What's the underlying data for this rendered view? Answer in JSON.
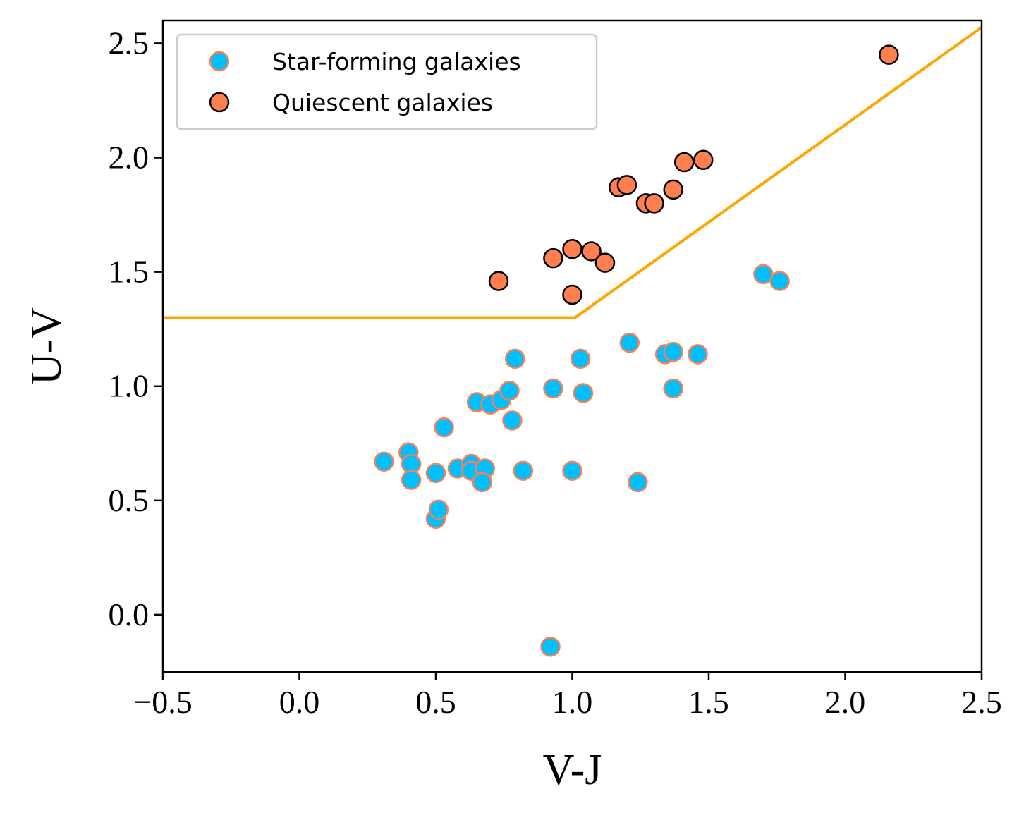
{
  "chart_data": {
    "type": "scatter",
    "title": "",
    "xlabel": "V-J",
    "ylabel": "U-V",
    "xlim": [
      -0.5,
      2.5
    ],
    "ylim": [
      -0.25,
      2.6
    ],
    "xticks": [
      -0.5,
      0.0,
      0.5,
      1.0,
      1.5,
      2.0,
      2.5
    ],
    "xtick_labels": [
      "−0.5",
      "0.0",
      "0.5",
      "1.0",
      "1.5",
      "2.0",
      "2.5"
    ],
    "yticks": [
      0.0,
      0.5,
      1.0,
      1.5,
      2.0,
      2.5
    ],
    "ytick_labels": [
      "0.0",
      "0.5",
      "1.0",
      "1.5",
      "2.0",
      "2.5"
    ],
    "grid": false,
    "legend_position": "top-left",
    "colors": {
      "star_fill": "#00bfff",
      "star_edge": "#ff7f50",
      "quiescent_fill": "#ff7f50",
      "quiescent_edge": "#000000",
      "boundary": "#ffa500"
    },
    "boundary_line": {
      "name": "UVJ selection boundary",
      "points": [
        [
          -0.5,
          1.3
        ],
        [
          1.01,
          1.3
        ],
        [
          2.5,
          2.57
        ]
      ]
    },
    "series": [
      {
        "name": "Star-forming galaxies",
        "points": [
          [
            0.31,
            0.67
          ],
          [
            0.4,
            0.71
          ],
          [
            0.41,
            0.66
          ],
          [
            0.41,
            0.59
          ],
          [
            0.5,
            0.42
          ],
          [
            0.51,
            0.46
          ],
          [
            0.5,
            0.62
          ],
          [
            0.53,
            0.82
          ],
          [
            0.58,
            0.64
          ],
          [
            0.63,
            0.66
          ],
          [
            0.63,
            0.63
          ],
          [
            0.65,
            0.93
          ],
          [
            0.7,
            0.92
          ],
          [
            0.68,
            0.64
          ],
          [
            0.67,
            0.58
          ],
          [
            0.74,
            0.94
          ],
          [
            0.77,
            0.98
          ],
          [
            0.78,
            0.85
          ],
          [
            0.79,
            1.12
          ],
          [
            0.82,
            0.63
          ],
          [
            0.92,
            -0.14
          ],
          [
            0.93,
            0.99
          ],
          [
            1.0,
            0.63
          ],
          [
            1.03,
            1.12
          ],
          [
            1.04,
            0.97
          ],
          [
            1.21,
            1.19
          ],
          [
            1.24,
            0.58
          ],
          [
            1.34,
            1.14
          ],
          [
            1.37,
            1.15
          ],
          [
            1.37,
            0.99
          ],
          [
            1.46,
            1.14
          ],
          [
            1.7,
            1.49
          ],
          [
            1.76,
            1.46
          ]
        ]
      },
      {
        "name": "Quiescent galaxies",
        "points": [
          [
            0.73,
            1.46
          ],
          [
            0.93,
            1.56
          ],
          [
            1.0,
            1.6
          ],
          [
            1.0,
            1.4
          ],
          [
            1.07,
            1.59
          ],
          [
            1.12,
            1.54
          ],
          [
            1.17,
            1.87
          ],
          [
            1.2,
            1.88
          ],
          [
            1.27,
            1.8
          ],
          [
            1.3,
            1.8
          ],
          [
            1.37,
            1.86
          ],
          [
            1.41,
            1.98
          ],
          [
            1.48,
            1.99
          ],
          [
            2.16,
            2.45
          ]
        ]
      }
    ]
  }
}
